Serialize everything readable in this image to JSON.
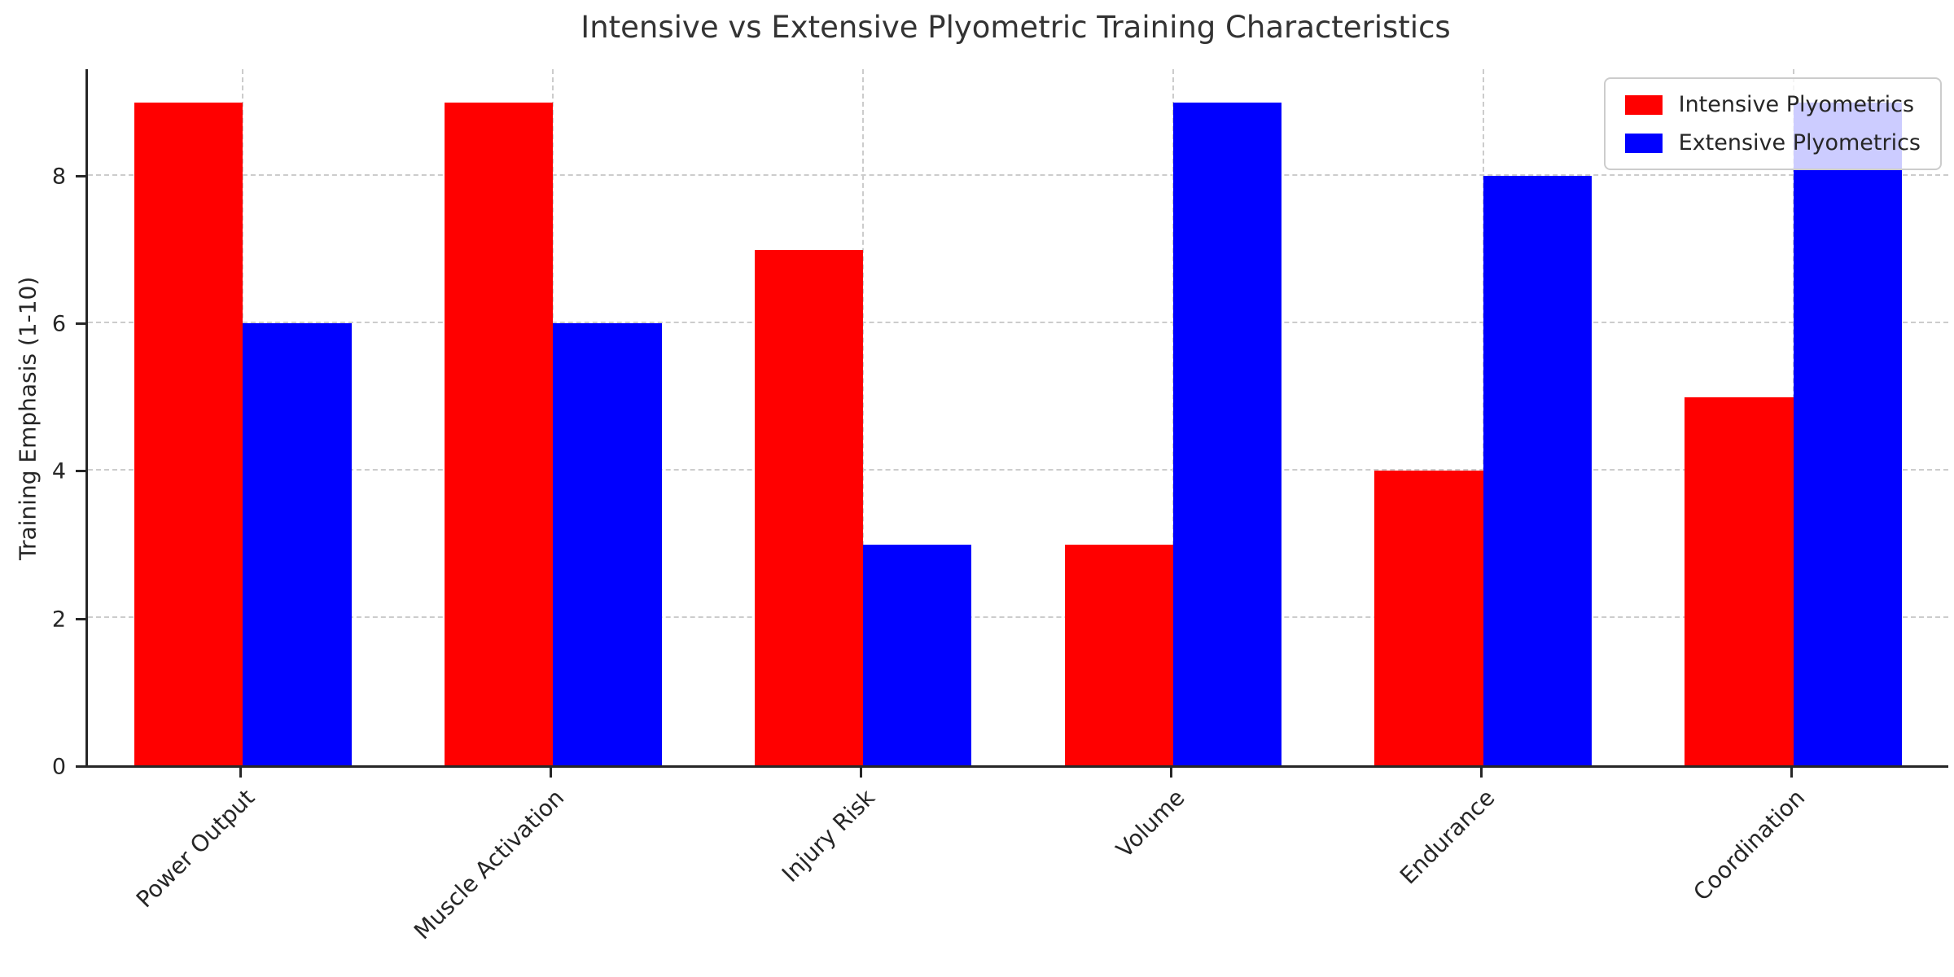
{
  "chart_data": {
    "type": "bar",
    "title": "Intensive vs Extensive Plyometric Training Characteristics",
    "ylabel": "Training Emphasis (1-10)",
    "xlabel": "",
    "categories": [
      "Power Output",
      "Muscle Activation",
      "Injury Risk",
      "Volume",
      "Endurance",
      "Coordination"
    ],
    "series": [
      {
        "name": "Intensive Plyometrics",
        "color": "#ff0000",
        "values": [
          9,
          9,
          7,
          3,
          4,
          5
        ]
      },
      {
        "name": "Extensive Plyometrics",
        "color": "#0000ff",
        "values": [
          6,
          6,
          3,
          9,
          8,
          9
        ]
      }
    ],
    "yticks": [
      0,
      2,
      4,
      6,
      8
    ],
    "ylim": [
      0,
      9.45
    ],
    "grid": true,
    "grid_style": "dashed",
    "legend_position": "upper right",
    "bar_width_fraction": 0.35
  }
}
